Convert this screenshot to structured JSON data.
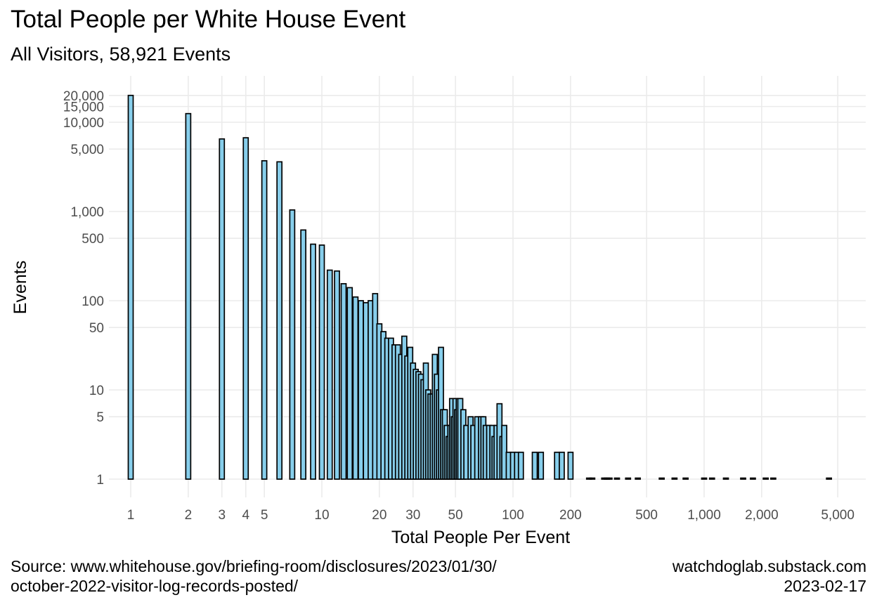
{
  "chart_data": {
    "type": "bar",
    "title": "Total People per White House Event",
    "subtitle": "All Visitors, 58,921 Events",
    "xlabel": "Total People Per Event",
    "ylabel": "Events",
    "x_scale": "log10",
    "y_scale": "log10",
    "xlim": [
      0.85,
      6000
    ],
    "ylim": [
      0.8,
      25000
    ],
    "x_ticks": [
      1,
      2,
      3,
      4,
      5,
      10,
      20,
      30,
      50,
      100,
      200,
      500,
      1000,
      2000,
      5000
    ],
    "x_tick_labels": [
      "1",
      "2",
      "3",
      "4",
      "5",
      "10",
      "20",
      "30",
      "50",
      "100",
      "200",
      "500",
      "1,000",
      "2,000",
      "5,000"
    ],
    "y_ticks": [
      1,
      5,
      10,
      50,
      100,
      500,
      1000,
      5000,
      10000,
      15000,
      20000
    ],
    "y_tick_labels": [
      "1",
      "5",
      "10",
      "50",
      "100",
      "500",
      "1,000",
      "5,000",
      "10,000",
      "15,000",
      "20,000"
    ],
    "grid": true,
    "color": "#87ceeb",
    "x": [
      1,
      2,
      3,
      4,
      5,
      6,
      7,
      8,
      9,
      10,
      11,
      12,
      13,
      14,
      15,
      16,
      17,
      18,
      19,
      20,
      21,
      22,
      23,
      24,
      25,
      26,
      27,
      28,
      29,
      30,
      31,
      32,
      33,
      34,
      35,
      36,
      37,
      38,
      39,
      40,
      41,
      42,
      43,
      44,
      45,
      46,
      47,
      48,
      49,
      50,
      51,
      52,
      53,
      55,
      57,
      60,
      62,
      65,
      68,
      70,
      72,
      75,
      78,
      80,
      82,
      85,
      88,
      90,
      95,
      100,
      105,
      110,
      130,
      140,
      170,
      180,
      200,
      250,
      260,
      300,
      310,
      320,
      350,
      400,
      450,
      600,
      700,
      800,
      1000,
      1100,
      1300,
      1600,
      1800,
      2100,
      2300,
      4500
    ],
    "values": [
      20000,
      12500,
      6500,
      6700,
      3700,
      3600,
      1040,
      620,
      430,
      420,
      220,
      215,
      155,
      140,
      110,
      100,
      95,
      100,
      120,
      55,
      45,
      38,
      38,
      32,
      32,
      25,
      40,
      24,
      30,
      20,
      17,
      16,
      15,
      13,
      20,
      10,
      9,
      9,
      25,
      15,
      10,
      30,
      6,
      6,
      4,
      3,
      4,
      8,
      5,
      8,
      6,
      8,
      8,
      6,
      4,
      5,
      4,
      5,
      5,
      5,
      4,
      4,
      4,
      3,
      4,
      7,
      3,
      4,
      2,
      2,
      2,
      2,
      2,
      2,
      2,
      2,
      2,
      1,
      1,
      1,
      1,
      1,
      1,
      1,
      1,
      1,
      1,
      1,
      1,
      1,
      1,
      1,
      1,
      1,
      1,
      1
    ]
  },
  "caption": {
    "source_line1": "Source: www.whitehouse.gov/briefing-room/disclosures/2023/01/30/",
    "source_line2": "october-2022-visitor-log-records-posted/",
    "site": "watchdoglab.substack.com",
    "date": "2023-02-17"
  }
}
